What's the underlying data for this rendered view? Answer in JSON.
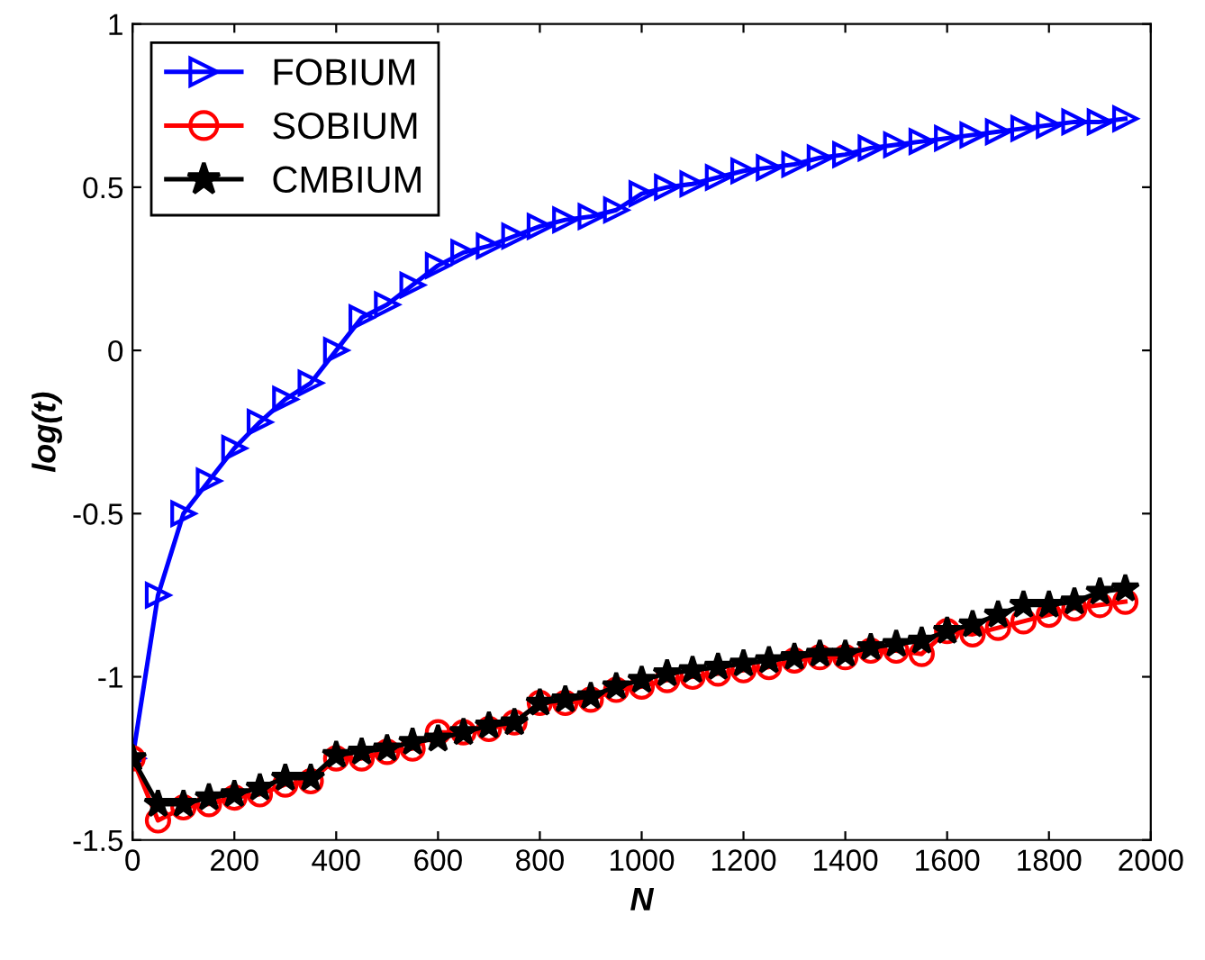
{
  "chart_data": {
    "type": "line",
    "xlabel": "N",
    "ylabel": "log(t)",
    "x": [
      0,
      50,
      100,
      150,
      200,
      250,
      300,
      350,
      400,
      450,
      500,
      550,
      600,
      650,
      700,
      750,
      800,
      850,
      900,
      950,
      1000,
      1050,
      1100,
      1150,
      1200,
      1250,
      1300,
      1350,
      1400,
      1450,
      1500,
      1550,
      1600,
      1650,
      1700,
      1750,
      1800,
      1850,
      1900,
      1950
    ],
    "series": [
      {
        "name": "FOBIUM",
        "color": "#0000ff",
        "marker": "triangle",
        "values": [
          -1.25,
          -0.75,
          -0.5,
          -0.4,
          -0.3,
          -0.22,
          -0.15,
          -0.1,
          0.0,
          0.1,
          0.14,
          0.2,
          0.26,
          0.3,
          0.32,
          0.35,
          0.38,
          0.4,
          0.41,
          0.43,
          0.48,
          0.5,
          0.51,
          0.53,
          0.55,
          0.56,
          0.57,
          0.59,
          0.6,
          0.62,
          0.63,
          0.64,
          0.65,
          0.66,
          0.67,
          0.68,
          0.69,
          0.7,
          0.7,
          0.71
        ]
      },
      {
        "name": "SOBIUM",
        "color": "#ff0000",
        "marker": "circle",
        "values": [
          -1.25,
          -1.44,
          -1.4,
          -1.39,
          -1.37,
          -1.36,
          -1.33,
          -1.32,
          -1.25,
          -1.25,
          -1.23,
          -1.22,
          -1.17,
          -1.17,
          -1.16,
          -1.14,
          -1.08,
          -1.08,
          -1.07,
          -1.04,
          -1.03,
          -1.01,
          -1.0,
          -0.99,
          -0.98,
          -0.97,
          -0.95,
          -0.94,
          -0.94,
          -0.92,
          -0.92,
          -0.93,
          -0.86,
          -0.87,
          -0.85,
          -0.83,
          -0.81,
          -0.79,
          -0.78,
          -0.77
        ]
      },
      {
        "name": "CMBIUM",
        "color": "#000000",
        "marker": "star",
        "values": [
          -1.25,
          -1.39,
          -1.39,
          -1.37,
          -1.36,
          -1.34,
          -1.31,
          -1.31,
          -1.24,
          -1.23,
          -1.22,
          -1.2,
          -1.19,
          -1.17,
          -1.15,
          -1.14,
          -1.08,
          -1.07,
          -1.06,
          -1.03,
          -1.01,
          -0.99,
          -0.98,
          -0.97,
          -0.96,
          -0.95,
          -0.94,
          -0.93,
          -0.93,
          -0.91,
          -0.9,
          -0.89,
          -0.86,
          -0.84,
          -0.81,
          -0.78,
          -0.78,
          -0.77,
          -0.74,
          -0.73
        ]
      }
    ],
    "xlim": [
      0,
      2000
    ],
    "xticks": [
      0,
      200,
      400,
      600,
      800,
      1000,
      1200,
      1400,
      1600,
      1800,
      2000
    ],
    "ylim": [
      -1.5,
      1
    ],
    "yticks": [
      -1.5,
      -1,
      -0.5,
      0,
      0.5,
      1
    ],
    "grid": false,
    "legend": "top left",
    "line_style": "solid"
  }
}
